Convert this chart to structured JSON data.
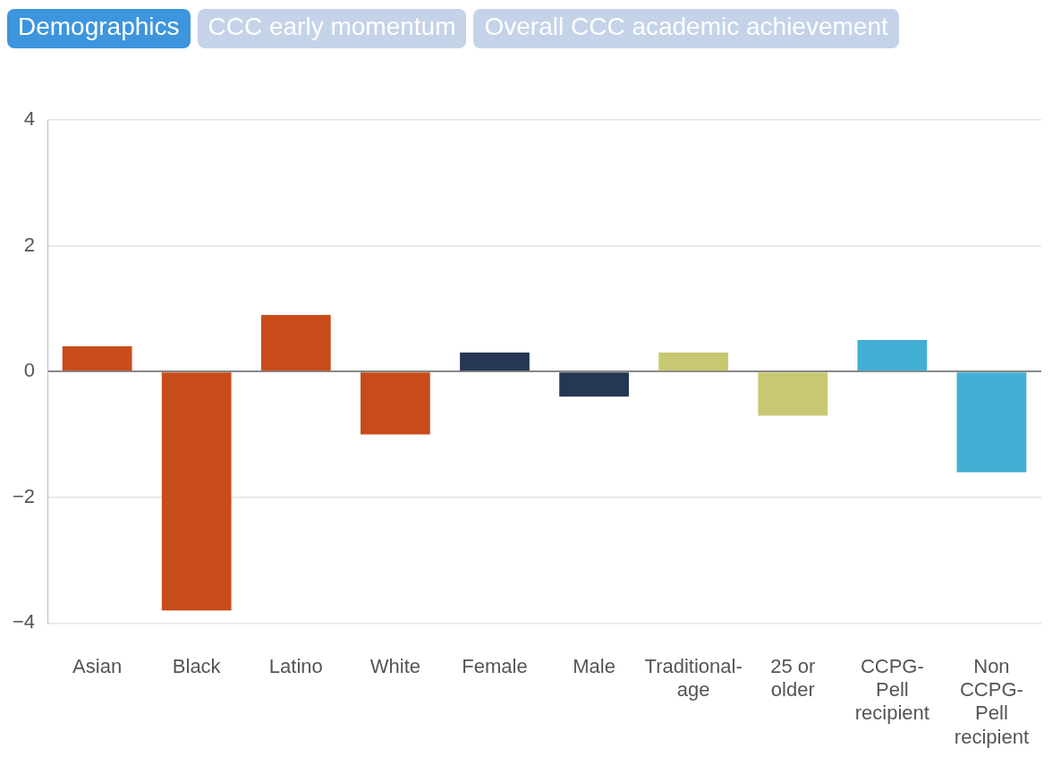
{
  "chart_data": {
    "type": "bar",
    "annotations": [
      "Demographics",
      "CCC early momentum",
      "Overall CCC academic achievement"
    ],
    "categories": [
      "Asian",
      "Black",
      "Latino",
      "White",
      "Female",
      "Male",
      "Traditional-age",
      "25 or older",
      "CCPG-Pell recipient",
      "Non CCPG-Pell recipient"
    ],
    "values": [
      0.4,
      -3.8,
      0.9,
      -1.0,
      0.3,
      -0.4,
      0.3,
      -0.7,
      0.5,
      -1.6
    ],
    "colors": [
      "#c84b1a",
      "#c84b1a",
      "#c84b1a",
      "#c84b1a",
      "#253753",
      "#253753",
      "#c9c872",
      "#c9c872",
      "#41afd3",
      "#41afd3"
    ],
    "ylim": [
      -4,
      4
    ],
    "yticks": [
      {
        "value": -4,
        "label": "−4"
      },
      {
        "value": -2,
        "label": "−2"
      },
      0,
      2,
      4
    ],
    "grid": "y",
    "legend": false
  }
}
